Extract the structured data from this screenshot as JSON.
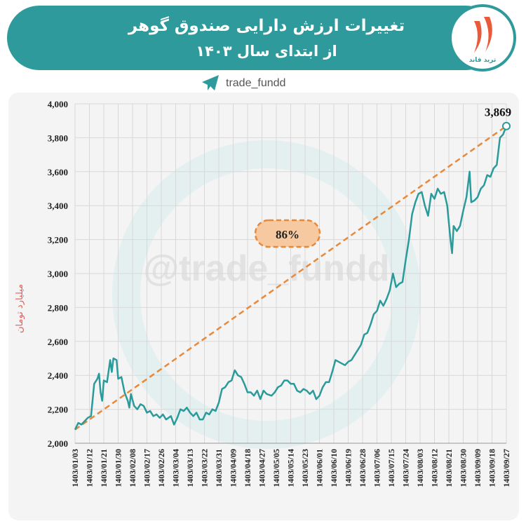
{
  "header": {
    "title_line1": "تغییرات ارزش دارایی صندوق گوهر",
    "title_line2": "از ابتدای سال ۱۴۰۳",
    "logo_text": "ترید فاند",
    "handle": "trade_fundd"
  },
  "chart_data": {
    "type": "line",
    "watermark": "@trade_fundd",
    "y_label": "میلیارد تومان",
    "annotation": "86%",
    "x": [
      "1403/01/03",
      "1403/01/05",
      "1403/01/07",
      "1403/01/09",
      "1403/01/11",
      "1403/01/13",
      "1403/01/15",
      "1403/01/17",
      "1403/01/18",
      "1403/01/19",
      "1403/01/20",
      "1403/01/21",
      "1403/01/23",
      "1403/01/25",
      "1403/01/26",
      "1403/01/27",
      "1403/01/29",
      "1403/01/30",
      "1403/02/01",
      "1403/02/03",
      "1403/02/05",
      "1403/02/06",
      "1403/02/07",
      "1403/02/09",
      "1403/02/11",
      "1403/02/13",
      "1403/02/15",
      "1403/02/17",
      "1403/02/19",
      "1403/02/21",
      "1403/02/23",
      "1403/02/25",
      "1403/02/27",
      "1403/02/29",
      "1403/03/01",
      "1403/03/03",
      "1403/03/05",
      "1403/03/07",
      "1403/03/09",
      "1403/03/11",
      "1403/03/13",
      "1403/03/15",
      "1403/03/17",
      "1403/03/19",
      "1403/03/21",
      "1403/03/23",
      "1403/03/25",
      "1403/03/27",
      "1403/03/29",
      "1403/03/31",
      "1403/04/02",
      "1403/04/04",
      "1403/04/06",
      "1403/04/08",
      "1403/04/10",
      "1403/04/12",
      "1403/04/14",
      "1403/04/16",
      "1403/04/18",
      "1403/04/20",
      "1403/04/22",
      "1403/04/24",
      "1403/04/26",
      "1403/04/28",
      "1403/04/30",
      "1403/05/02",
      "1403/05/04",
      "1403/05/06",
      "1403/05/08",
      "1403/05/10",
      "1403/05/12",
      "1403/05/14",
      "1403/05/16",
      "1403/05/18",
      "1403/05/20",
      "1403/05/22",
      "1403/05/24",
      "1403/05/26",
      "1403/05/28",
      "1403/05/30",
      "1403/06/01",
      "1403/06/03",
      "1403/06/05",
      "1403/06/07",
      "1403/06/09",
      "1403/06/11",
      "1403/06/13",
      "1403/06/15",
      "1403/06/17",
      "1403/06/19",
      "1403/06/21",
      "1403/06/23",
      "1403/06/25",
      "1403/06/27",
      "1403/06/29",
      "1403/06/31",
      "1403/07/02",
      "1403/07/04",
      "1403/07/06",
      "1403/07/08",
      "1403/07/10",
      "1403/07/12",
      "1403/07/14",
      "1403/07/16",
      "1403/07/18",
      "1403/07/20",
      "1403/07/22",
      "1403/07/24",
      "1403/07/26",
      "1403/07/28",
      "1403/07/30",
      "1403/08/02",
      "1403/08/04",
      "1403/08/06",
      "1403/08/08",
      "1403/08/10",
      "1403/08/12",
      "1403/08/14",
      "1403/08/16",
      "1403/08/18",
      "1403/08/20",
      "1403/08/22",
      "1403/08/23",
      "1403/08/24",
      "1403/08/26",
      "1403/08/28",
      "1403/08/30",
      "1403/09/02",
      "1403/09/04",
      "1403/09/05",
      "1403/09/07",
      "1403/09/09",
      "1403/09/11",
      "1403/09/13",
      "1403/09/15",
      "1403/09/17",
      "1403/09/19",
      "1403/09/21",
      "1403/09/23",
      "1403/09/25",
      "1403/09/27"
    ],
    "series": [
      {
        "name": "gohar",
        "color": "#2a9a9b",
        "values": [
          2080,
          2120,
          2110,
          2130,
          2150,
          2160,
          2350,
          2380,
          2410,
          2300,
          2250,
          2370,
          2360,
          2490,
          2420,
          2500,
          2490,
          2380,
          2390,
          2300,
          2250,
          2210,
          2290,
          2220,
          2200,
          2230,
          2220,
          2180,
          2190,
          2160,
          2170,
          2150,
          2170,
          2140,
          2160,
          2110,
          2150,
          2200,
          2190,
          2210,
          2180,
          2160,
          2180,
          2140,
          2140,
          2180,
          2170,
          2200,
          2190,
          2240,
          2320,
          2330,
          2360,
          2370,
          2430,
          2400,
          2390,
          2350,
          2300,
          2300,
          2280,
          2310,
          2260,
          2310,
          2290,
          2280,
          2300,
          2330,
          2340,
          2370,
          2370,
          2350,
          2350,
          2310,
          2300,
          2320,
          2310,
          2290,
          2310,
          2260,
          2280,
          2330,
          2360,
          2360,
          2420,
          2490,
          2480,
          2470,
          2460,
          2480,
          2490,
          2520,
          2550,
          2580,
          2640,
          2650,
          2700,
          2760,
          2780,
          2840,
          2810,
          2850,
          2900,
          3000,
          2920,
          2940,
          2950,
          3080,
          3200,
          3350,
          3420,
          3470,
          3480,
          3400,
          3340,
          3470,
          3440,
          3500,
          3470,
          3480,
          3400,
          3200,
          3120,
          3280,
          3250,
          3280,
          3370,
          3450,
          3600,
          3420,
          3430,
          3450,
          3500,
          3520,
          3580,
          3570,
          3620,
          3640,
          3800,
          3820,
          3869
        ]
      }
    ],
    "end_label": "3,869",
    "trend_color": "#e8893a",
    "xticks": [
      "1403/01/03",
      "1403/01/12",
      "1403/01/21",
      "1403/01/30",
      "1403/02/08",
      "1403/02/17",
      "1403/02/26",
      "1403/03/04",
      "1403/03/13",
      "1403/03/22",
      "1403/03/31",
      "1403/04/09",
      "1403/04/18",
      "1403/04/27",
      "1403/05/05",
      "1403/05/14",
      "1403/05/23",
      "1403/06/01",
      "1403/06/10",
      "1403/06/19",
      "1403/06/28",
      "1403/07/06",
      "1403/07/15",
      "1403/07/24",
      "1403/08/03",
      "1403/08/12",
      "1403/08/21",
      "1403/08/30",
      "1403/09/09",
      "1403/09/18",
      "1403/09/27"
    ],
    "ylim": [
      2000,
      4000
    ],
    "yticks": [
      {
        "value": 2000,
        "label": "2,000"
      },
      {
        "value": 2200,
        "label": "2,200"
      },
      {
        "value": 2400,
        "label": "2,400"
      },
      {
        "value": 2600,
        "label": "2,600"
      },
      {
        "value": 2800,
        "label": "2,800"
      },
      {
        "value": 3000,
        "label": "3,000"
      },
      {
        "value": 3200,
        "label": "3,200"
      },
      {
        "value": 3400,
        "label": "3,400"
      },
      {
        "value": 3600,
        "label": "3,600"
      },
      {
        "value": 3800,
        "label": "3,800"
      },
      {
        "value": 4000,
        "label": "4,000"
      }
    ],
    "grid": true
  }
}
